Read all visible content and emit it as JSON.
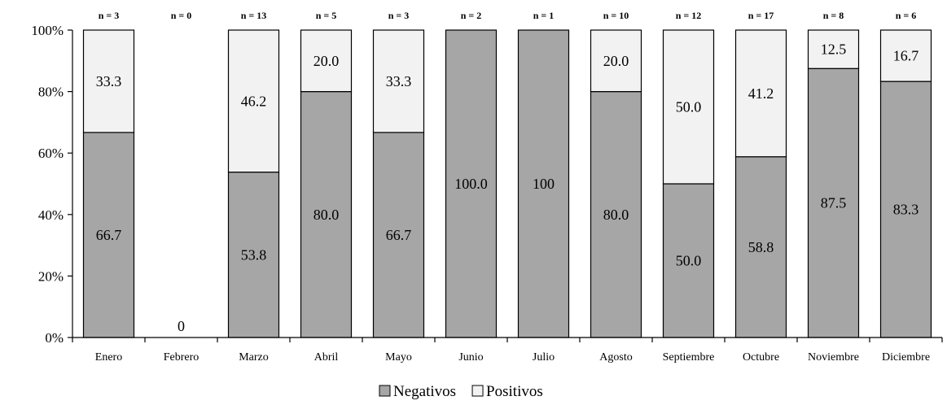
{
  "chart_data": {
    "type": "bar",
    "stacked": true,
    "categories": [
      "Enero",
      "Febrero",
      "Marzo",
      "Abril",
      "Mayo",
      "Junio",
      "Julio",
      "Agosto",
      "Septiembre",
      "Octubre",
      "Noviembre",
      "Diciembre"
    ],
    "n_labels": [
      "n = 3",
      "n = 0",
      "n = 13",
      "n = 5",
      "n = 3",
      "n = 2",
      "n = 1",
      "n = 10",
      "n = 12",
      "n = 17",
      "n = 8",
      "n = 6"
    ],
    "series": [
      {
        "name": "Negativos",
        "color": "#a6a6a6",
        "values": [
          66.7,
          0,
          53.8,
          80.0,
          66.7,
          100.0,
          100,
          80.0,
          50.0,
          58.8,
          87.5,
          83.3
        ],
        "labels": [
          "66.7",
          "0",
          "53.8",
          "80.0",
          "66.7",
          "100.0",
          "100",
          "80.0",
          "50.0",
          "58.8",
          "87.5",
          "83.3"
        ]
      },
      {
        "name": "Positivos",
        "color": "#f2f2f2",
        "values": [
          33.3,
          0,
          46.2,
          20.0,
          33.3,
          0,
          0,
          20.0,
          50.0,
          41.2,
          12.5,
          16.7
        ],
        "labels": [
          "33.3",
          "",
          "46.2",
          "20.0",
          "33.3",
          "",
          "",
          "20.0",
          "50.0",
          "41.2",
          "12.5",
          "16.7"
        ]
      }
    ],
    "y_ticks": [
      "0%",
      "20%",
      "40%",
      "60%",
      "80%",
      "100%"
    ],
    "ylim": [
      0,
      100
    ],
    "title": "",
    "xlabel": "",
    "ylabel": "",
    "legend_position": "bottom",
    "grid": false
  }
}
